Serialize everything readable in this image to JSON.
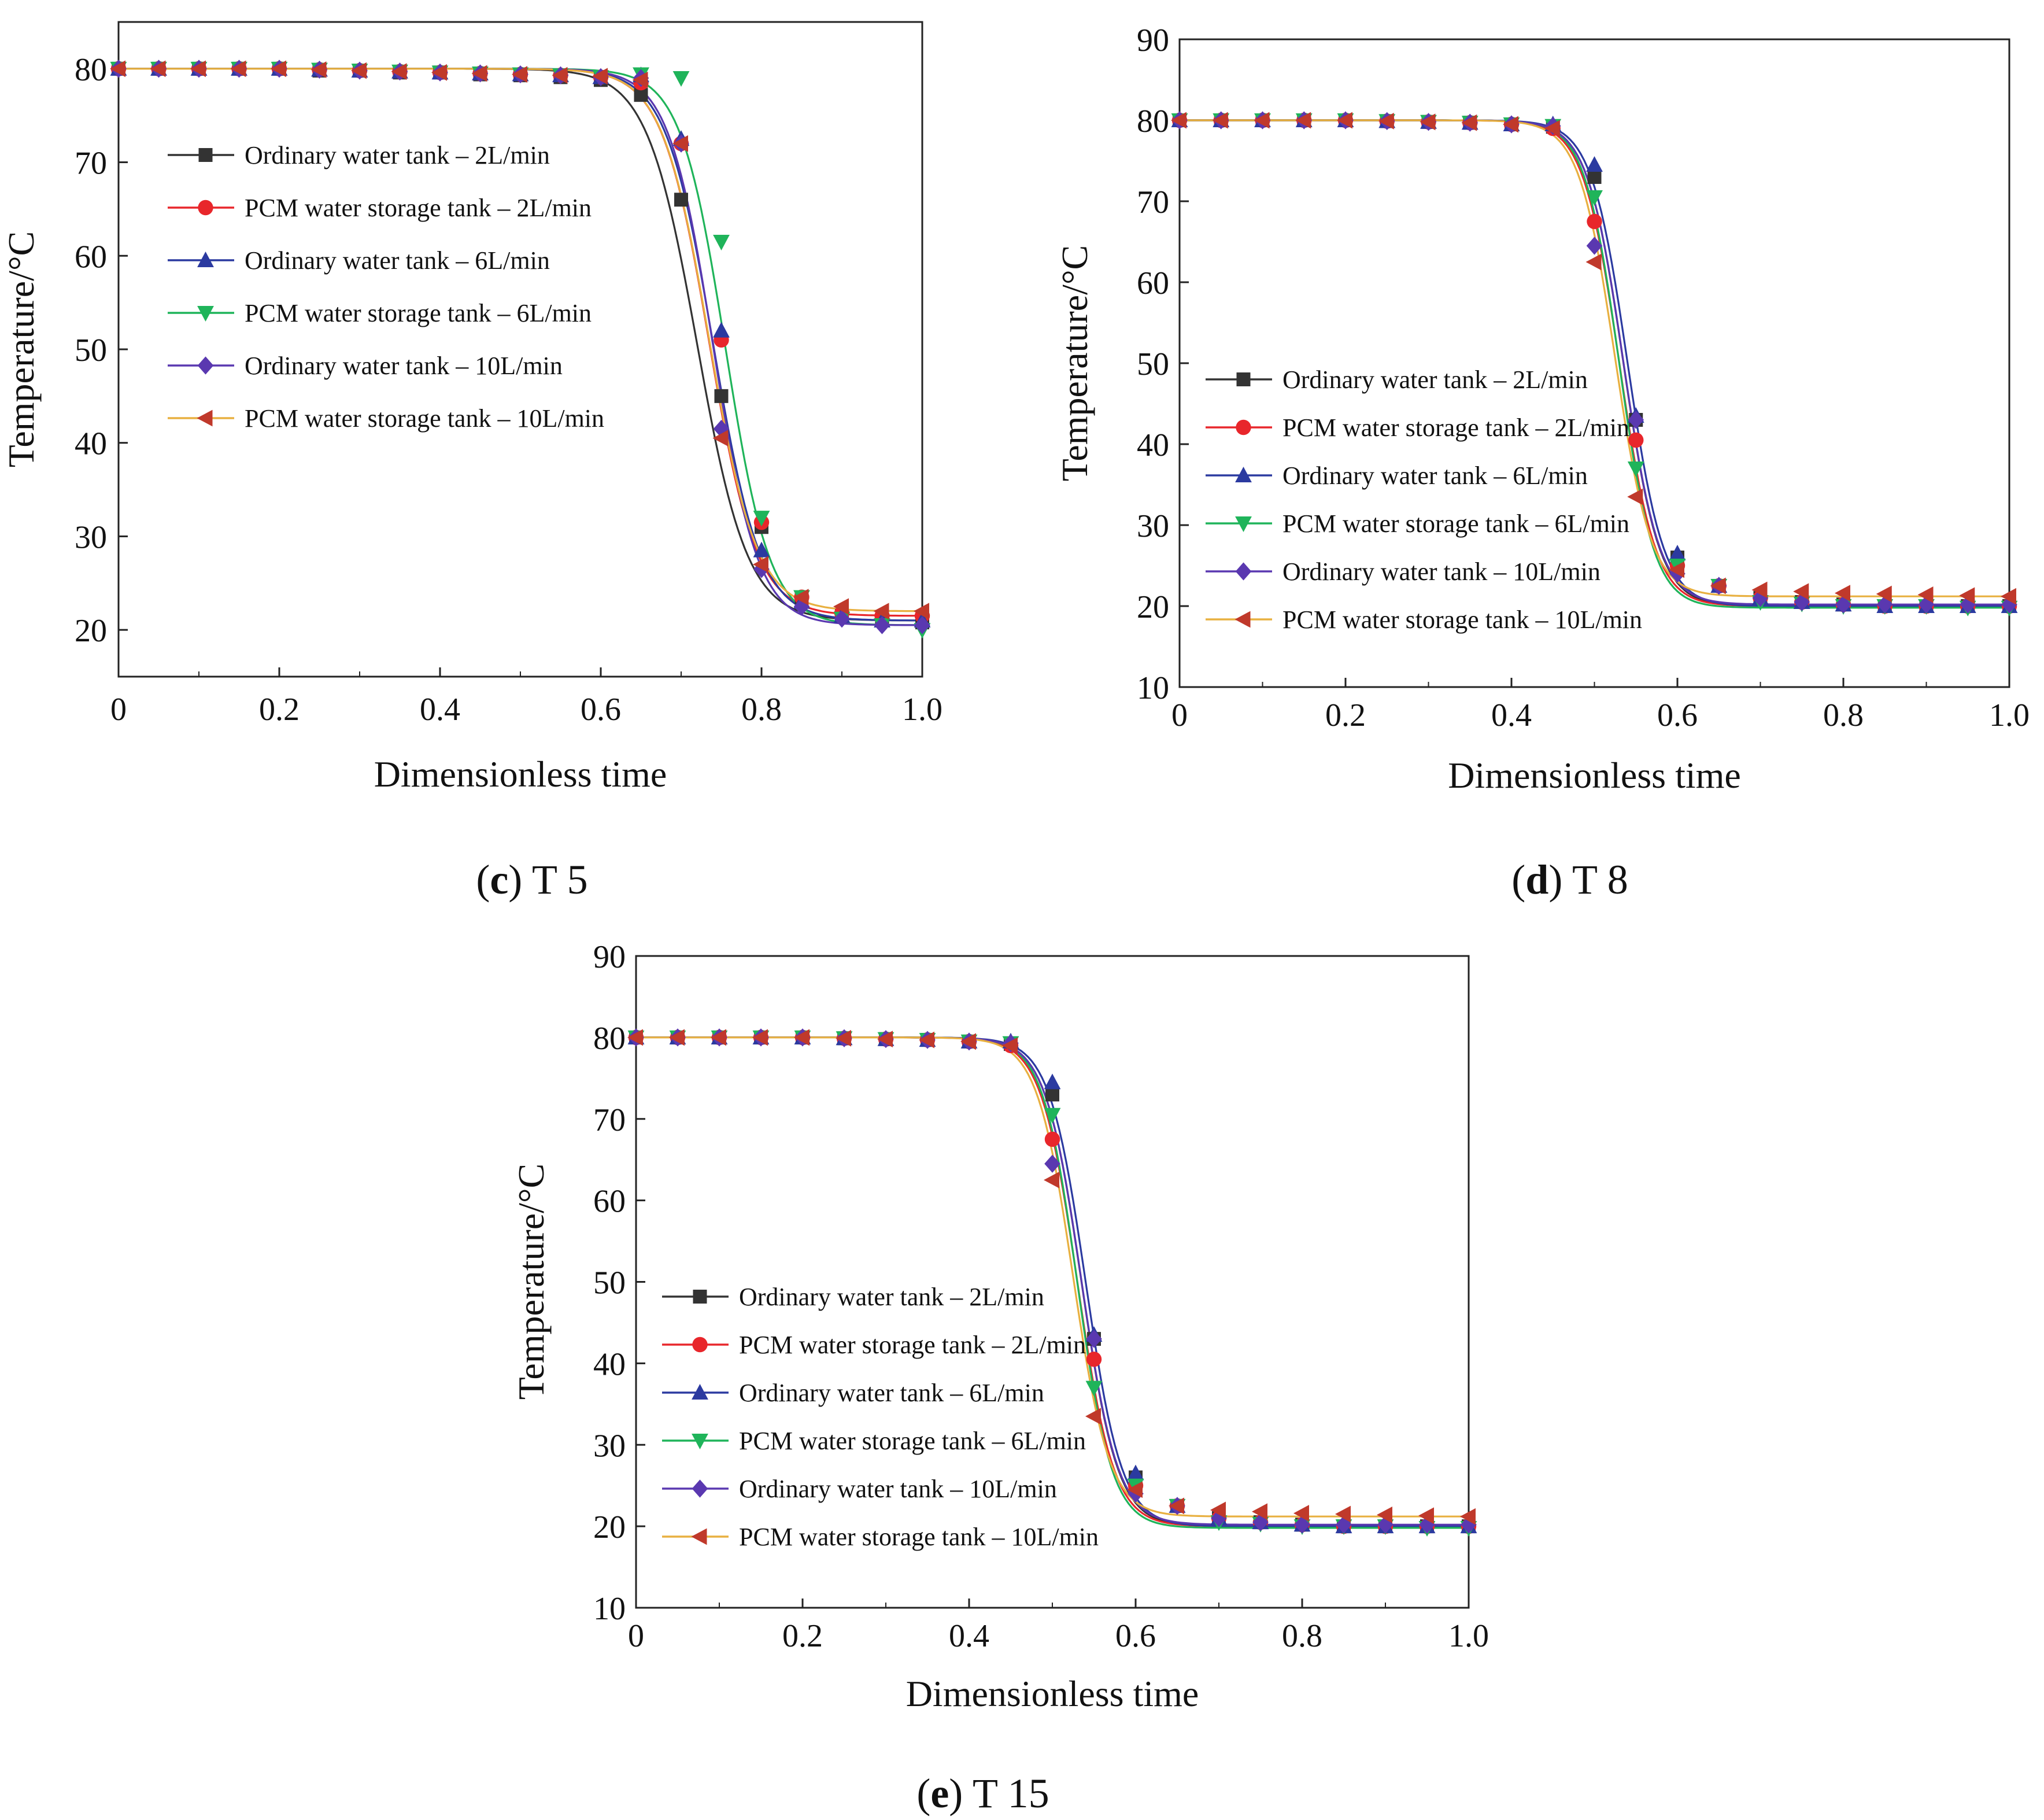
{
  "colors": {
    "ordinary_2": "#333333",
    "pcm_2": "#e8262b",
    "ordinary_6": "#2b3aa0",
    "pcm_6": "#1fb45a",
    "ordinary_10": "#5a38b0",
    "pcm_10": "#c0392b",
    "pcm_10_line": "#e8b040"
  },
  "chart_data": [
    {
      "id": "c",
      "type": "line",
      "caption_letter": "c",
      "caption_text": "T 5",
      "xlabel": "Dimensionless time",
      "ylabel": "Temperature/°C",
      "xlim": [
        0,
        1.0
      ],
      "ylim": [
        15,
        85
      ],
      "xticks": [
        0,
        0.2,
        0.4,
        0.6,
        0.8,
        1.0
      ],
      "xtick_labels": [
        "0",
        "0.2",
        "0.4",
        "0.6",
        "0.8",
        "1.0"
      ],
      "yticks": [
        20,
        30,
        40,
        50,
        60,
        70,
        80
      ],
      "ytick_labels": [
        "20",
        "30",
        "40",
        "50",
        "60",
        "70",
        "80"
      ],
      "legend_position": "upper-left",
      "marker_x": [
        0,
        0.05,
        0.1,
        0.15,
        0.2,
        0.25,
        0.3,
        0.35,
        0.4,
        0.45,
        0.5,
        0.55,
        0.6,
        0.65,
        0.7,
        0.75,
        0.8,
        0.85,
        0.9,
        0.95,
        1.0
      ],
      "series": [
        {
          "name": "Ordinary water tank – 2L/min",
          "marker": "square",
          "color_key": "ordinary_2",
          "line_key": "ordinary_2",
          "x0": 0.72,
          "k": 32,
          "top": 80,
          "bottom": 21,
          "marker_values": [
            80,
            80,
            80,
            80,
            80,
            79.8,
            79.8,
            79.6,
            79.6,
            79.4,
            79.3,
            79.1,
            78.8,
            77.2,
            66,
            45,
            31,
            23.5,
            21.5,
            21,
            20.8
          ]
        },
        {
          "name": "PCM water storage tank – 2L/min",
          "marker": "circle",
          "color_key": "pcm_2",
          "line_key": "pcm_2",
          "x0": 0.735,
          "k": 34,
          "top": 80,
          "bottom": 21.5,
          "marker_values": [
            80,
            80,
            80,
            80,
            80,
            79.9,
            79.8,
            79.7,
            79.6,
            79.5,
            79.4,
            79.3,
            79.1,
            78.5,
            72,
            51,
            31.5,
            23.5,
            21.8,
            21.5,
            21.5
          ]
        },
        {
          "name": "Ordinary water tank – 6L/min",
          "marker": "triangle-up",
          "color_key": "ordinary_6",
          "line_key": "ordinary_6",
          "x0": 0.74,
          "k": 34,
          "top": 80,
          "bottom": 21,
          "marker_values": [
            80,
            80,
            80,
            80,
            80,
            79.9,
            79.8,
            79.7,
            79.6,
            79.5,
            79.4,
            79.3,
            79.1,
            79.3,
            72.5,
            52,
            28.5,
            23,
            21.5,
            21,
            21
          ]
        },
        {
          "name": "PCM water storage tank – 6L/min",
          "marker": "triangle-down",
          "color_key": "pcm_6",
          "line_key": "pcm_6",
          "x0": 0.755,
          "k": 36,
          "top": 80,
          "bottom": 20.5,
          "marker_values": [
            80,
            80,
            80,
            80,
            80,
            79.9,
            79.8,
            79.7,
            79.6,
            79.5,
            79.4,
            79.3,
            79.1,
            79.4,
            79,
            61.5,
            32,
            23.5,
            21.2,
            20.5,
            20
          ]
        },
        {
          "name": "Ordinary water tank – 10L/min",
          "marker": "diamond",
          "color_key": "ordinary_10",
          "line_key": "ordinary_10",
          "x0": 0.74,
          "k": 36,
          "top": 80,
          "bottom": 20.5,
          "marker_values": [
            80,
            80,
            80,
            80,
            80,
            79.9,
            79.8,
            79.7,
            79.6,
            79.5,
            79.4,
            79.3,
            79.1,
            79,
            72,
            41.5,
            26.5,
            22.5,
            21.2,
            20.5,
            20.5
          ]
        },
        {
          "name": "PCM water storage tank – 10L/min",
          "marker": "triangle-left",
          "color_key": "pcm_10",
          "line_key": "pcm_10_line",
          "x0": 0.735,
          "k": 34,
          "top": 80,
          "bottom": 22,
          "marker_values": [
            80,
            80,
            80,
            80,
            80,
            79.9,
            79.8,
            79.7,
            79.6,
            79.5,
            79.4,
            79.3,
            79.2,
            78.8,
            72,
            40.5,
            27,
            23.5,
            22.5,
            22,
            22
          ]
        }
      ]
    },
    {
      "id": "d",
      "type": "line",
      "caption_letter": "d",
      "caption_text": "T 8",
      "xlabel": "Dimensionless time",
      "ylabel": "Temperature/°C",
      "xlim": [
        0,
        1.0
      ],
      "ylim": [
        10,
        90
      ],
      "xticks": [
        0,
        0.2,
        0.4,
        0.6,
        0.8,
        1.0
      ],
      "xtick_labels": [
        "0",
        "0.2",
        "0.4",
        "0.6",
        "0.8",
        "1.0"
      ],
      "yticks": [
        10,
        20,
        30,
        40,
        50,
        60,
        70,
        80,
        90
      ],
      "ytick_labels": [
        "10",
        "20",
        "30",
        "40",
        "50",
        "60",
        "70",
        "80",
        "90"
      ],
      "legend_position": "lower-left",
      "marker_x": [
        0,
        0.05,
        0.1,
        0.15,
        0.2,
        0.25,
        0.3,
        0.35,
        0.4,
        0.45,
        0.5,
        0.55,
        0.6,
        0.65,
        0.7,
        0.75,
        0.8,
        0.85,
        0.9,
        0.95,
        1.0
      ],
      "series": [
        {
          "name": "Ordinary water tank – 2L/min",
          "marker": "square",
          "color_key": "ordinary_2",
          "line_key": "ordinary_2",
          "x0": 0.535,
          "k": 46,
          "top": 80,
          "bottom": 20,
          "marker_values": [
            80,
            80,
            80,
            80,
            80,
            79.9,
            79.8,
            79.7,
            79.5,
            79.2,
            73,
            43,
            26,
            22.5,
            21,
            20.5,
            20.2,
            20,
            20,
            20,
            20
          ]
        },
        {
          "name": "PCM water storage tank – 2L/min",
          "marker": "circle",
          "color_key": "pcm_2",
          "line_key": "pcm_2",
          "x0": 0.53,
          "k": 46,
          "top": 80,
          "bottom": 20,
          "marker_values": [
            80,
            80,
            80,
            80,
            80,
            79.9,
            79.8,
            79.7,
            79.5,
            79,
            67.5,
            40.5,
            25,
            22.5,
            21,
            20.5,
            20.2,
            20,
            20,
            20,
            20
          ]
        },
        {
          "name": "Ordinary water tank – 6L/min",
          "marker": "triangle-up",
          "color_key": "ordinary_6",
          "line_key": "ordinary_6",
          "x0": 0.54,
          "k": 46,
          "top": 80,
          "bottom": 20,
          "marker_values": [
            80,
            80,
            80,
            80,
            80,
            79.9,
            79.8,
            79.7,
            79.5,
            79.5,
            74.5,
            43.5,
            26.5,
            22.5,
            21,
            20.5,
            20.2,
            20,
            20,
            20,
            20
          ]
        },
        {
          "name": "PCM water storage tank – 6L/min",
          "marker": "triangle-down",
          "color_key": "pcm_6",
          "line_key": "pcm_6",
          "x0": 0.53,
          "k": 48,
          "top": 80,
          "bottom": 19.8,
          "marker_values": [
            80,
            80,
            80,
            80,
            80,
            79.9,
            79.8,
            79.7,
            79.5,
            79.3,
            70.5,
            37,
            25,
            22.5,
            20.5,
            20.3,
            20,
            20,
            20,
            19.8,
            19.8
          ]
        },
        {
          "name": "Ordinary water tank – 10L/min",
          "marker": "diamond",
          "color_key": "ordinary_10",
          "line_key": "ordinary_10",
          "x0": 0.535,
          "k": 46,
          "top": 80,
          "bottom": 20.2,
          "marker_values": [
            80,
            80,
            80,
            80,
            80,
            79.9,
            79.8,
            79.7,
            79.5,
            79.3,
            64.5,
            43,
            24,
            22.5,
            21,
            20.5,
            20.2,
            20.2,
            20.2,
            20.2,
            20.2
          ]
        },
        {
          "name": "PCM water storage tank – 10L/min",
          "marker": "triangle-left",
          "color_key": "pcm_10",
          "line_key": "pcm_10_line",
          "x0": 0.525,
          "k": 46,
          "top": 80,
          "bottom": 21.2,
          "marker_values": [
            80,
            80,
            80,
            80,
            80,
            79.9,
            79.8,
            79.7,
            79.5,
            79,
            62.5,
            33.5,
            24.5,
            22.5,
            22,
            21.8,
            21.6,
            21.5,
            21.4,
            21.3,
            21.2
          ]
        }
      ]
    },
    {
      "id": "e",
      "type": "line",
      "caption_letter": "e",
      "caption_text": "T 15",
      "xlabel": "Dimensionless time",
      "ylabel": "Temperature/°C",
      "xlim": [
        0,
        1.0
      ],
      "ylim": [
        10,
        90
      ],
      "xticks": [
        0,
        0.2,
        0.4,
        0.6,
        0.8,
        1.0
      ],
      "xtick_labels": [
        "0",
        "0.2",
        "0.4",
        "0.6",
        "0.8",
        "1.0"
      ],
      "yticks": [
        10,
        20,
        30,
        40,
        50,
        60,
        70,
        80,
        90
      ],
      "ytick_labels": [
        "10",
        "20",
        "30",
        "40",
        "50",
        "60",
        "70",
        "80",
        "90"
      ],
      "legend_position": "lower-left",
      "marker_x": [
        0,
        0.05,
        0.1,
        0.15,
        0.2,
        0.25,
        0.3,
        0.35,
        0.4,
        0.45,
        0.5,
        0.55,
        0.6,
        0.65,
        0.7,
        0.75,
        0.8,
        0.85,
        0.9,
        0.95,
        1.0
      ],
      "series": [
        {
          "name": "Ordinary water tank – 2L/min",
          "marker": "square",
          "color_key": "ordinary_2",
          "line_key": "ordinary_2",
          "x0": 0.535,
          "k": 46,
          "top": 80,
          "bottom": 20,
          "marker_values": [
            80,
            80,
            80,
            80,
            80,
            79.9,
            79.8,
            79.7,
            79.5,
            79.2,
            73,
            43,
            26,
            22.5,
            21,
            20.5,
            20.2,
            20,
            20,
            20,
            20
          ]
        },
        {
          "name": "PCM water storage tank – 2L/min",
          "marker": "circle",
          "color_key": "pcm_2",
          "line_key": "pcm_2",
          "x0": 0.53,
          "k": 46,
          "top": 80,
          "bottom": 20,
          "marker_values": [
            80,
            80,
            80,
            80,
            80,
            79.9,
            79.8,
            79.7,
            79.5,
            79,
            67.5,
            40.5,
            25,
            22.5,
            21,
            20.5,
            20.2,
            20,
            20,
            20,
            20
          ]
        },
        {
          "name": "Ordinary water tank – 6L/min",
          "marker": "triangle-up",
          "color_key": "ordinary_6",
          "line_key": "ordinary_6",
          "x0": 0.54,
          "k": 46,
          "top": 80,
          "bottom": 20,
          "marker_values": [
            80,
            80,
            80,
            80,
            80,
            79.9,
            79.8,
            79.7,
            79.5,
            79.5,
            74.5,
            43.5,
            26.5,
            22.5,
            21,
            20.5,
            20.2,
            20,
            20,
            20,
            20
          ]
        },
        {
          "name": "PCM water storage tank – 6L/min",
          "marker": "triangle-down",
          "color_key": "pcm_6",
          "line_key": "pcm_6",
          "x0": 0.53,
          "k": 48,
          "top": 80,
          "bottom": 19.8,
          "marker_values": [
            80,
            80,
            80,
            80,
            80,
            79.9,
            79.8,
            79.7,
            79.5,
            79.3,
            70.5,
            37,
            25,
            22.5,
            20.5,
            20.3,
            20,
            20,
            20,
            19.8,
            19.8
          ]
        },
        {
          "name": "Ordinary water tank – 10L/min",
          "marker": "diamond",
          "color_key": "ordinary_10",
          "line_key": "ordinary_10",
          "x0": 0.535,
          "k": 46,
          "top": 80,
          "bottom": 20.2,
          "marker_values": [
            80,
            80,
            80,
            80,
            80,
            79.9,
            79.8,
            79.7,
            79.5,
            79.3,
            64.5,
            43,
            24,
            22.5,
            21,
            20.5,
            20.2,
            20.2,
            20.2,
            20.2,
            20.2
          ]
        },
        {
          "name": "PCM water storage tank – 10L/min",
          "marker": "triangle-left",
          "color_key": "pcm_10",
          "line_key": "pcm_10_line",
          "x0": 0.525,
          "k": 46,
          "top": 80,
          "bottom": 21.2,
          "marker_values": [
            80,
            80,
            80,
            80,
            80,
            79.9,
            79.8,
            79.7,
            79.5,
            79,
            62.5,
            33.5,
            24.5,
            22.5,
            22,
            21.8,
            21.6,
            21.5,
            21.4,
            21.3,
            21.2
          ]
        }
      ]
    }
  ]
}
